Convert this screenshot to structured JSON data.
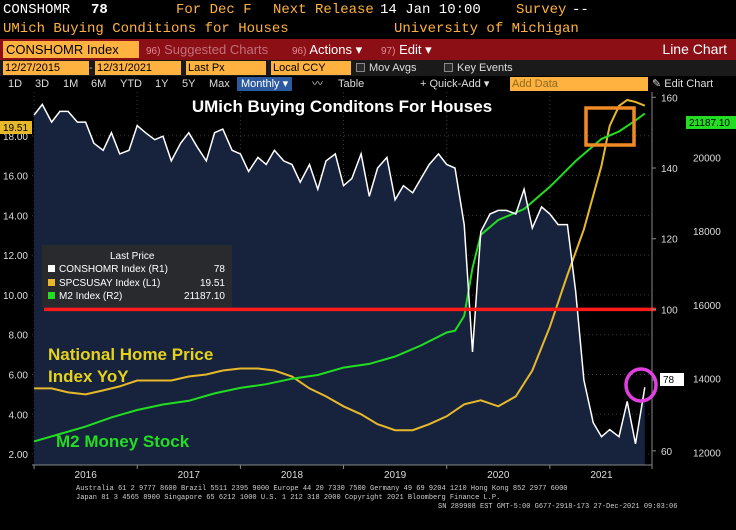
{
  "header": {
    "ticker": "CONSHOMR",
    "ticker_value": "78",
    "period": "For Dec F",
    "next_release_label": "Next Release",
    "next_release_value": "14 Jan 10:00",
    "survey_label": "Survey",
    "survey_value": "--"
  },
  "description": {
    "name": "UMich Buying Conditions for Houses",
    "source": "University of Michigan"
  },
  "command_bar": {
    "index_box": "CONSHOMR Index",
    "suggested": {
      "num": "96)",
      "label": "Suggested Charts"
    },
    "actions": {
      "num": "96)",
      "label": "Actions ▾"
    },
    "edit": {
      "num": "97)",
      "label": "Edit ▾"
    },
    "mode": "Line Chart"
  },
  "params": {
    "start_date": "12/27/2015",
    "end_date": "12/31/2021",
    "price_field": "Last Px",
    "currency": "Local CCY",
    "mov_avgs": "Mov Avgs",
    "key_events": "Key Events"
  },
  "periods": {
    "items": [
      "1D",
      "3D",
      "1M",
      "6M",
      "YTD",
      "1Y",
      "5Y",
      "Max"
    ],
    "frequency": "Monthly",
    "table": "Table",
    "quick_add": "+ Quick-Add ▾",
    "add_data_placeholder": "Add Data",
    "edit_chart": "Edit Chart"
  },
  "legend": {
    "heading": "Last Price",
    "rows": [
      {
        "name": "CONSHOMR Index (R1)",
        "value": "78",
        "color": "#ffffff"
      },
      {
        "name": "SPCSUSAY Index (L1)",
        "value": "19.51",
        "color": "#e6b82a"
      },
      {
        "name": "M2 Index (R2)",
        "value": "21187.10",
        "color": "#22dd22"
      }
    ]
  },
  "annotations": {
    "home_price": "National Home Price\nIndex YoY",
    "m2": "M2 Money Stock"
  },
  "chart_data": {
    "type": "line",
    "title": "UMich Buying Conditons For Houses",
    "x_range": [
      2015.98,
      2021.99
    ],
    "x_ticks": [
      "2016",
      "2017",
      "2018",
      "2019",
      "2020",
      "2021"
    ],
    "axes": {
      "L1": {
        "ylim": [
          1.45,
          20.2
        ],
        "ticks": [
          2,
          4,
          6,
          8,
          10,
          12,
          14,
          16,
          18
        ]
      },
      "R1": {
        "ylim": [
          56,
          161.5
        ],
        "ticks": [
          60,
          80,
          100,
          120,
          140,
          160
        ]
      },
      "R2": {
        "ylim": [
          11660,
          21770
        ],
        "ticks": [
          12000,
          14000,
          16000,
          18000,
          20000
        ]
      }
    },
    "reference_line": {
      "axis": "R1",
      "value": 100,
      "color": "#ff1a1a"
    },
    "last_value_tags": {
      "L1": "19.51",
      "R1": "78",
      "R2": "21187.10"
    },
    "series": [
      {
        "name": "CONSHOMR Index",
        "axis": "R1",
        "color": "#ffffff",
        "fill": "#17233d",
        "values": [
          [
            2016.0,
            155
          ],
          [
            2016.08,
            158
          ],
          [
            2016.17,
            153
          ],
          [
            2016.25,
            156
          ],
          [
            2016.33,
            156
          ],
          [
            2016.42,
            153
          ],
          [
            2016.5,
            153
          ],
          [
            2016.58,
            147
          ],
          [
            2016.67,
            145
          ],
          [
            2016.75,
            150
          ],
          [
            2016.83,
            144
          ],
          [
            2016.92,
            145
          ],
          [
            2017.0,
            152
          ],
          [
            2017.08,
            150
          ],
          [
            2017.17,
            148
          ],
          [
            2017.25,
            149
          ],
          [
            2017.33,
            142
          ],
          [
            2017.42,
            147
          ],
          [
            2017.5,
            150
          ],
          [
            2017.58,
            146
          ],
          [
            2017.67,
            142
          ],
          [
            2017.75,
            150
          ],
          [
            2017.83,
            151
          ],
          [
            2017.92,
            145
          ],
          [
            2018.0,
            144
          ],
          [
            2018.08,
            139
          ],
          [
            2018.17,
            143
          ],
          [
            2018.25,
            141
          ],
          [
            2018.33,
            145
          ],
          [
            2018.42,
            142
          ],
          [
            2018.5,
            141
          ],
          [
            2018.58,
            136
          ],
          [
            2018.67,
            141
          ],
          [
            2018.75,
            134
          ],
          [
            2018.83,
            142
          ],
          [
            2018.92,
            144
          ],
          [
            2019.0,
            135
          ],
          [
            2019.08,
            137
          ],
          [
            2019.17,
            144
          ],
          [
            2019.25,
            132
          ],
          [
            2019.33,
            140
          ],
          [
            2019.42,
            143
          ],
          [
            2019.5,
            131
          ],
          [
            2019.58,
            135
          ],
          [
            2019.67,
            133
          ],
          [
            2019.75,
            137
          ],
          [
            2019.83,
            141
          ],
          [
            2019.92,
            144
          ],
          [
            2020.0,
            141
          ],
          [
            2020.08,
            140
          ],
          [
            2020.17,
            124
          ],
          [
            2020.25,
            88
          ],
          [
            2020.33,
            122
          ],
          [
            2020.42,
            127
          ],
          [
            2020.5,
            128
          ],
          [
            2020.58,
            128
          ],
          [
            2020.67,
            127
          ],
          [
            2020.75,
            134
          ],
          [
            2020.83,
            123
          ],
          [
            2020.92,
            129
          ],
          [
            2021.0,
            127
          ],
          [
            2021.08,
            124
          ],
          [
            2021.17,
            124
          ],
          [
            2021.25,
            105
          ],
          [
            2021.33,
            80
          ],
          [
            2021.42,
            68
          ],
          [
            2021.5,
            64
          ],
          [
            2021.58,
            66
          ],
          [
            2021.67,
            64
          ],
          [
            2021.75,
            74
          ],
          [
            2021.83,
            62
          ],
          [
            2021.92,
            78
          ]
        ]
      },
      {
        "name": "SPCSUSAY Index",
        "axis": "L1",
        "color": "#e6b82a",
        "values": [
          [
            2016.0,
            5.3
          ],
          [
            2016.17,
            5.3
          ],
          [
            2016.33,
            5.1
          ],
          [
            2016.5,
            5.0
          ],
          [
            2016.67,
            5.2
          ],
          [
            2016.83,
            5.4
          ],
          [
            2017.0,
            5.7
          ],
          [
            2017.17,
            5.7
          ],
          [
            2017.33,
            5.7
          ],
          [
            2017.5,
            5.9
          ],
          [
            2017.67,
            6.0
          ],
          [
            2017.83,
            6.2
          ],
          [
            2018.0,
            6.3
          ],
          [
            2018.17,
            6.3
          ],
          [
            2018.33,
            6.2
          ],
          [
            2018.5,
            5.9
          ],
          [
            2018.67,
            5.3
          ],
          [
            2018.83,
            4.9
          ],
          [
            2019.0,
            4.4
          ],
          [
            2019.17,
            4.0
          ],
          [
            2019.33,
            3.5
          ],
          [
            2019.5,
            3.2
          ],
          [
            2019.67,
            3.2
          ],
          [
            2019.83,
            3.5
          ],
          [
            2020.0,
            3.9
          ],
          [
            2020.17,
            4.5
          ],
          [
            2020.33,
            4.7
          ],
          [
            2020.5,
            4.4
          ],
          [
            2020.67,
            4.9
          ],
          [
            2020.83,
            6.2
          ],
          [
            2021.0,
            8.4
          ],
          [
            2021.17,
            11.0
          ],
          [
            2021.33,
            13.3
          ],
          [
            2021.5,
            16.5
          ],
          [
            2021.58,
            18.5
          ],
          [
            2021.67,
            19.5
          ],
          [
            2021.75,
            19.8
          ],
          [
            2021.83,
            19.7
          ],
          [
            2021.92,
            19.51
          ]
        ]
      },
      {
        "name": "M2 Index",
        "axis": "R2",
        "color": "#22dd22",
        "values": [
          [
            2016.0,
            12300
          ],
          [
            2016.25,
            12500
          ],
          [
            2016.5,
            12700
          ],
          [
            2016.75,
            12950
          ],
          [
            2017.0,
            13150
          ],
          [
            2017.25,
            13300
          ],
          [
            2017.5,
            13400
          ],
          [
            2017.75,
            13600
          ],
          [
            2018.0,
            13750
          ],
          [
            2018.25,
            13850
          ],
          [
            2018.5,
            14000
          ],
          [
            2018.75,
            14100
          ],
          [
            2019.0,
            14300
          ],
          [
            2019.25,
            14400
          ],
          [
            2019.5,
            14600
          ],
          [
            2019.75,
            14900
          ],
          [
            2020.0,
            15250
          ],
          [
            2020.08,
            15300
          ],
          [
            2020.17,
            15700
          ],
          [
            2020.25,
            17000
          ],
          [
            2020.33,
            17900
          ],
          [
            2020.5,
            18300
          ],
          [
            2020.75,
            18600
          ],
          [
            2021.0,
            19200
          ],
          [
            2021.25,
            19900
          ],
          [
            2021.5,
            20500
          ],
          [
            2021.67,
            20700
          ],
          [
            2021.83,
            21000
          ],
          [
            2021.92,
            21187.1
          ]
        ]
      }
    ]
  },
  "footer": {
    "line1": "Australia 61 2 9777 8600 Brazil 5511 2395 9000 Europe 44 20 7330 7500 Germany 49 69 9204 1210 Hong Kong 852 2977 6000",
    "line2": "Japan 81 3 4565 8900       Singapore 65 6212 1000       U.S. 1 212 318 2000        Copyright 2021 Bloomberg Finance L.P.",
    "line3": "SN 289908 EST  GMT-5:00 G677-2918-173 27-Dec-2021 09:03:06"
  }
}
